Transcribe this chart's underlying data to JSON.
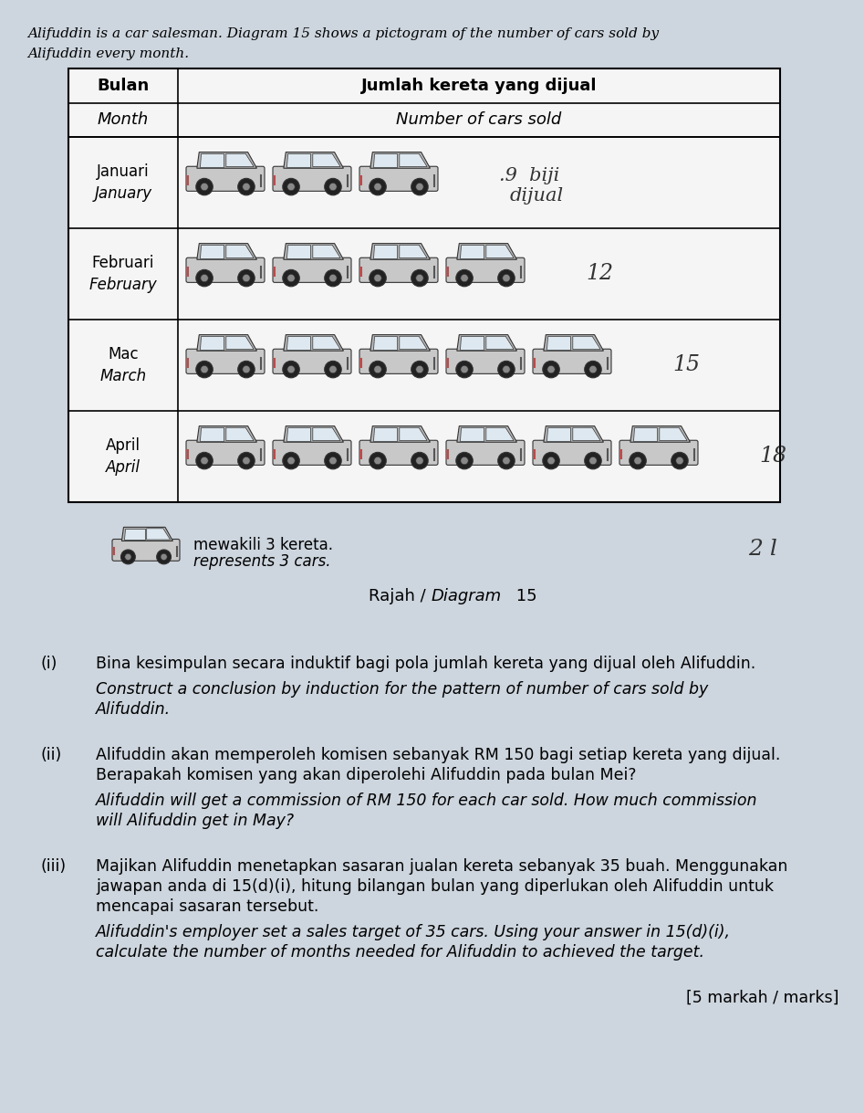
{
  "bg_color": "#cdd5de",
  "table_bg": "#f0f0f0",
  "table_inner_bg": "#ffffff",
  "title_text_1": "Alifuddin is a car salesman. Diagram 15 shows a pictogram of the number of cars sold by",
  "title_text_2": "Alifuddin every month.",
  "months_malay": [
    "Januari",
    "Februari",
    "Mac",
    "April"
  ],
  "months_english": [
    "January",
    "February",
    "March",
    "April"
  ],
  "cars_per_row": [
    3,
    4,
    5,
    6
  ],
  "car_numbers_right": [
    ".9 biji\ndijual",
    "12",
    "15",
    "18"
  ],
  "handwritten_note": "2 l",
  "legend_malay": "mewakili 3 kereta.",
  "legend_english": "represents 3 cars.",
  "diagram_label_normal": "Rajah / ",
  "diagram_label_italic": "Diagram",
  "diagram_label_end": " 15",
  "q_label_i": "(i)",
  "q_malay_i": "Bina kesimpulan secara induktif bagi pola jumlah kereta yang dijual oleh Alifuddin.",
  "q_english_i_1": "Construct a conclusion by induction for the pattern of number of cars sold by",
  "q_english_i_2": "Alifuddin.",
  "q_label_ii": "(ii)",
  "q_malay_ii_1": "Alifuddin akan memperoleh komisen sebanyak RM 150 bagi setiap kereta yang dijual.",
  "q_malay_ii_2": "Berapakah komisen yang akan diperolehi Alifuddin pada bulan Mei?",
  "q_english_ii_1": "Alifuddin will get a commission of RM 150 for each car sold. How much commission",
  "q_english_ii_2": "will Alifuddin get in May?",
  "q_label_iii": "(iii)",
  "q_malay_iii_1": "Majikan Alifuddin menetapkan sasaran jualan kereta sebanyak 35 buah. Menggunakan",
  "q_malay_iii_2": "jawapan anda di 15(d)(i), hitung bilangan bulan yang diperlukan oleh Alifuddin untuk",
  "q_malay_iii_3": "mencapai sasaran tersebut.",
  "q_english_iii_1": "Alifuddin's employer set a sales target of 35 cars. Using your answer in 15(d)(i),",
  "q_english_iii_2": "calculate the number of months needed for Alifuddin to achieved the target.",
  "marks_text": "[5 markah / marks]"
}
